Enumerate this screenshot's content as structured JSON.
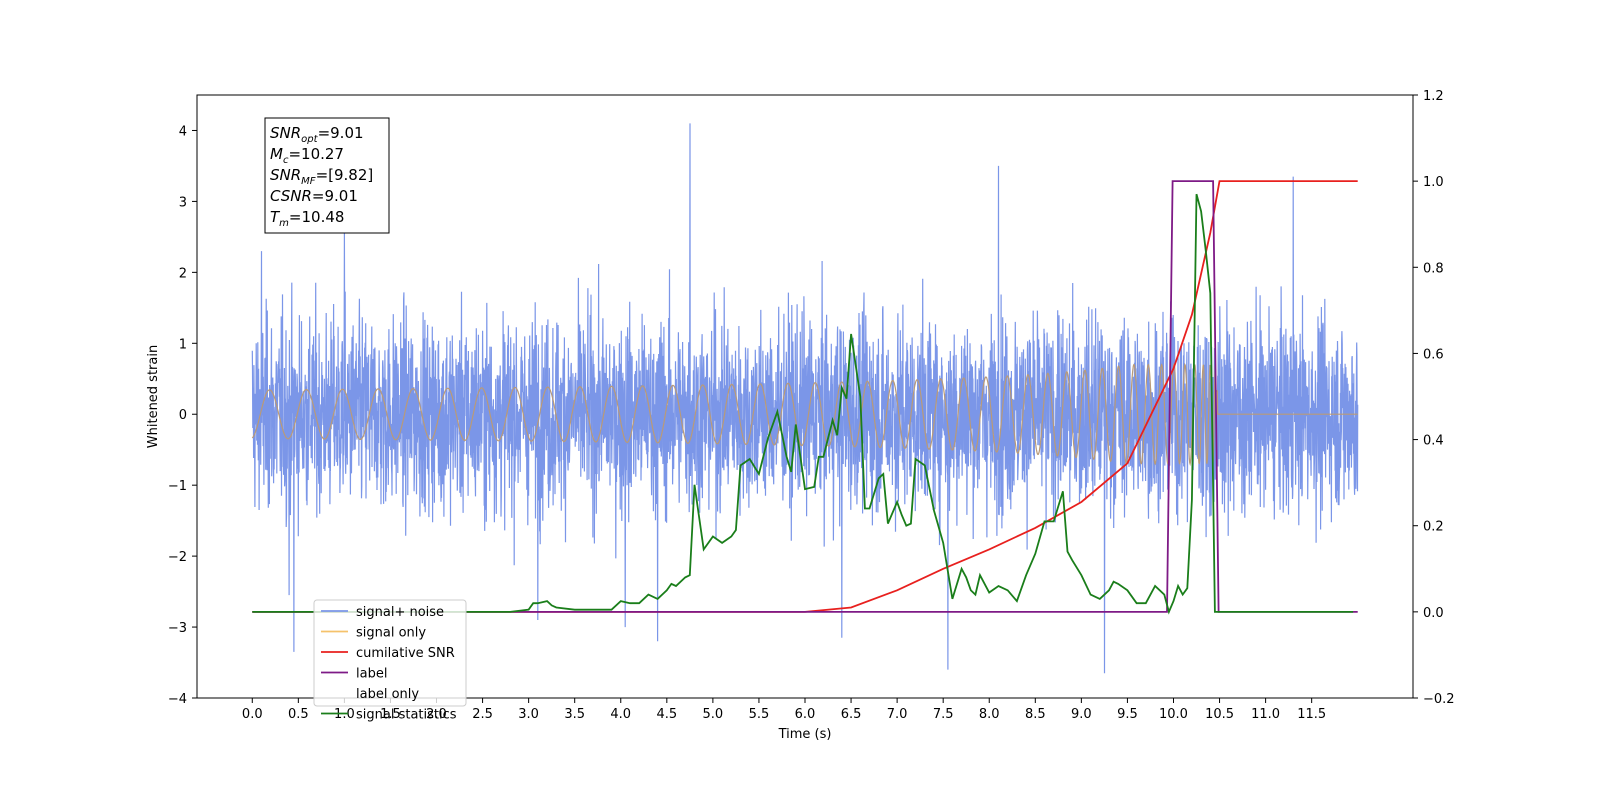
{
  "chart_data": {
    "type": "line",
    "xlabel": "Time (s)",
    "ylabel": "Whitened strain",
    "xlim": [
      -0.6,
      12.6
    ],
    "ylim_left": [
      -4,
      4.5
    ],
    "ylim_right": [
      -0.2,
      1.2
    ],
    "x_ticks": [
      0.0,
      0.5,
      1.0,
      1.5,
      2.0,
      2.5,
      3.0,
      3.5,
      4.0,
      4.5,
      5.0,
      5.5,
      6.0,
      6.5,
      7.0,
      7.5,
      8.0,
      8.5,
      9.0,
      9.5,
      10.0,
      10.5,
      11.0,
      11.5
    ],
    "x_tick_labels": [
      "0.0",
      "0.5",
      "1.0",
      "1.5",
      "2.0",
      "2.5",
      "3.0",
      "3.5",
      "4.0",
      "4.5",
      "5.0",
      "5.5",
      "6.0",
      "6.5",
      "7.0",
      "7.5",
      "8.0",
      "8.5",
      "9.0",
      "9.5",
      "10.0",
      "10.5",
      "11.0",
      "11.5"
    ],
    "y_left_ticks": [
      -4,
      -3,
      -2,
      -1,
      0,
      1,
      2,
      3,
      4
    ],
    "y_left_tick_labels": [
      "−4",
      "−3",
      "−2",
      "−1",
      "0",
      "1",
      "2",
      "3",
      "4"
    ],
    "y_right_ticks": [
      -0.2,
      0.0,
      0.2,
      0.4,
      0.6,
      0.8,
      1.0,
      1.2
    ],
    "y_right_tick_labels": [
      "−0.2",
      "0.0",
      "0.2",
      "0.4",
      "0.6",
      "0.8",
      "1.0",
      "1.2"
    ],
    "grid": false,
    "legend_position": "bottom-left",
    "annotation": [
      {
        "main": "SNR",
        "sub": "opt",
        "value": "=9.01"
      },
      {
        "main": "M",
        "sub": "c",
        "value": "=10.27"
      },
      {
        "main": "SNR",
        "sub": "MF",
        "value": "=[9.82]"
      },
      {
        "main": "CSNR",
        "sub": "",
        "value": "=9.01"
      },
      {
        "main": "T",
        "sub": "m",
        "value": "=10.48"
      }
    ],
    "series": [
      {
        "name": "signal+ noise",
        "color": "#7b96e8",
        "axis": "left",
        "render": "noise-band",
        "x_range": [
          0,
          12.0
        ],
        "typical_amplitude": 1.0,
        "peak_values": [
          [
            0.1,
            2.3
          ],
          [
            0.4,
            -2.55
          ],
          [
            0.45,
            -3.35
          ],
          [
            1.0,
            2.55
          ],
          [
            3.1,
            -2.9
          ],
          [
            4.05,
            -3.0
          ],
          [
            4.4,
            -3.2
          ],
          [
            4.75,
            4.1
          ],
          [
            6.4,
            -3.15
          ],
          [
            7.55,
            -3.6
          ],
          [
            8.1,
            3.5
          ],
          [
            9.25,
            -3.65
          ],
          [
            11.3,
            3.35
          ]
        ]
      },
      {
        "name": "signal only",
        "color": "#f5c26b",
        "axis": "left",
        "render": "chirp",
        "x_range": [
          0,
          12.0
        ],
        "chirp_end": 10.48,
        "max_amplitude": 0.7,
        "overlap_color": "#b99a78"
      },
      {
        "name": "cumilative SNR",
        "color": "#e8201e",
        "axis": "right",
        "x": [
          0,
          6.0,
          6.5,
          7.0,
          7.5,
          8.0,
          8.5,
          9.0,
          9.5,
          10.0,
          10.2,
          10.4,
          10.5,
          12.0
        ],
        "y": [
          0,
          0,
          0.01,
          0.05,
          0.1,
          0.145,
          0.195,
          0.255,
          0.345,
          0.565,
          0.69,
          0.88,
          1.0,
          1.0
        ]
      },
      {
        "name": "label",
        "color": "#7e1a86",
        "axis": "right",
        "x": [
          0,
          9.93,
          9.99,
          10.43,
          10.49,
          12.0
        ],
        "y": [
          0,
          0,
          1.0,
          1.0,
          0,
          0
        ]
      },
      {
        "name": "label only",
        "color": "#ffffff",
        "axis": "right",
        "x": [],
        "y": []
      },
      {
        "name": "signal statistics",
        "color": "#1a7e1a",
        "axis": "right",
        "x": [
          0,
          2.5,
          2.8,
          3.0,
          3.05,
          3.1,
          3.2,
          3.25,
          3.3,
          3.5,
          3.7,
          3.9,
          4.0,
          4.1,
          4.2,
          4.3,
          4.4,
          4.5,
          4.55,
          4.6,
          4.7,
          4.75,
          4.8,
          4.9,
          5.0,
          5.1,
          5.2,
          5.25,
          5.3,
          5.4,
          5.5,
          5.6,
          5.7,
          5.8,
          5.85,
          5.9,
          6.0,
          6.1,
          6.15,
          6.2,
          6.3,
          6.35,
          6.4,
          6.45,
          6.5,
          6.6,
          6.65,
          6.7,
          6.8,
          6.85,
          6.9,
          7.0,
          7.05,
          7.1,
          7.15,
          7.2,
          7.3,
          7.4,
          7.5,
          7.6,
          7.7,
          7.75,
          7.8,
          7.85,
          7.9,
          8.0,
          8.1,
          8.2,
          8.3,
          8.4,
          8.5,
          8.6,
          8.7,
          8.75,
          8.8,
          8.85,
          8.9,
          9.0,
          9.1,
          9.2,
          9.3,
          9.35,
          9.4,
          9.5,
          9.6,
          9.7,
          9.8,
          9.9,
          9.95,
          10.0,
          10.05,
          10.1,
          10.15,
          10.2,
          10.25,
          10.3,
          10.35,
          10.4,
          10.45,
          10.5,
          11.0,
          11.95
        ],
        "y": [
          0,
          0,
          0.0,
          0.005,
          0.02,
          0.02,
          0.025,
          0.015,
          0.01,
          0.005,
          0.005,
          0.005,
          0.025,
          0.02,
          0.02,
          0.04,
          0.03,
          0.05,
          0.065,
          0.06,
          0.08,
          0.085,
          0.295,
          0.145,
          0.175,
          0.16,
          0.175,
          0.19,
          0.34,
          0.355,
          0.32,
          0.405,
          0.465,
          0.36,
          0.325,
          0.435,
          0.285,
          0.29,
          0.36,
          0.36,
          0.445,
          0.41,
          0.52,
          0.495,
          0.645,
          0.5,
          0.24,
          0.24,
          0.31,
          0.32,
          0.205,
          0.255,
          0.225,
          0.2,
          0.205,
          0.355,
          0.34,
          0.235,
          0.16,
          0.03,
          0.1,
          0.08,
          0.05,
          0.04,
          0.085,
          0.045,
          0.06,
          0.05,
          0.025,
          0.085,
          0.135,
          0.21,
          0.21,
          0.245,
          0.28,
          0.14,
          0.12,
          0.085,
          0.04,
          0.03,
          0.05,
          0.07,
          0.065,
          0.05,
          0.02,
          0.02,
          0.06,
          0.04,
          0.0,
          0.025,
          0.06,
          0.04,
          0.055,
          0.26,
          0.97,
          0.93,
          0.84,
          0.74,
          0.0,
          0.0,
          0.0,
          0.0
        ]
      }
    ]
  }
}
